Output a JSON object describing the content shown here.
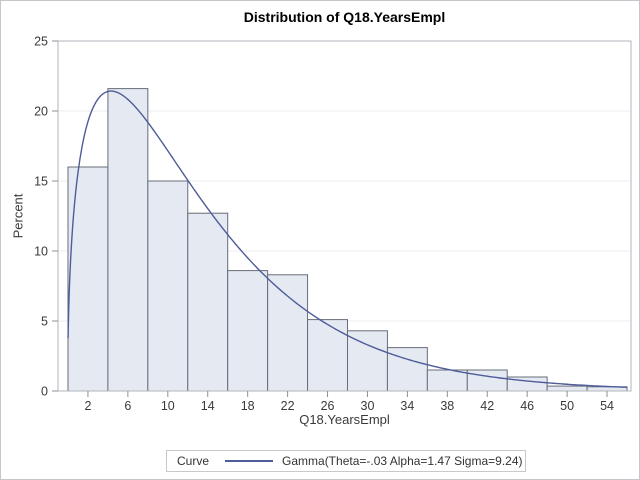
{
  "figure": {
    "background": "#ffffff",
    "border_color": "#c3c6cb"
  },
  "chart": {
    "title": "Distribution of Q18.YearsEmpl",
    "x_axis": {
      "label": "Q18.YearsEmpl",
      "ticks": [
        2,
        6,
        10,
        14,
        18,
        22,
        26,
        30,
        34,
        38,
        42,
        46,
        50,
        54
      ]
    },
    "y_axis": {
      "label": "Percent",
      "ticks": [
        0,
        5,
        10,
        15,
        20,
        25
      ],
      "gridlines": [
        5,
        10,
        15,
        20
      ]
    },
    "legend": {
      "label": "Curve",
      "entry": "Gamma(Theta=-.03 Alpha=1.47 Sigma=9.24)"
    }
  },
  "chart_data": {
    "type": "bar",
    "subtype": "histogram-with-fit-curve",
    "title": "Distribution of Q18.YearsEmpl",
    "xlabel": "Q18.YearsEmpl",
    "ylabel": "Percent",
    "bin_width": 4,
    "categories": [
      2,
      6,
      10,
      14,
      18,
      22,
      26,
      30,
      34,
      38,
      42,
      46,
      50,
      54
    ],
    "values": [
      16.0,
      21.6,
      15.0,
      12.7,
      8.6,
      8.3,
      5.1,
      4.3,
      3.1,
      1.5,
      1.5,
      1.0,
      0.35,
      0.3
    ],
    "xlim": [
      -1,
      56.4
    ],
    "ylim": [
      0,
      25
    ],
    "grid": true,
    "legend_position": "bottom-outside",
    "curve": {
      "distribution": "gamma",
      "theta": -0.03,
      "alpha": 1.47,
      "sigma": 9.24,
      "percent_scale": 400,
      "x_start": 0.01,
      "x_end": 56.2,
      "peak_percent": 21.4,
      "label": "Gamma(Theta=-.03 Alpha=1.47 Sigma=9.24)"
    }
  },
  "colors": {
    "bar_fill": "#e5e9f2",
    "bar_stroke": "#676d78",
    "curve": "#4e5c99",
    "frame": "#b2b6bc",
    "tick": "#8d9197",
    "grid": "#ecedf0",
    "text": "#3a3a3a",
    "title_text": "#000000",
    "legend_border": "#c6c9cd"
  }
}
